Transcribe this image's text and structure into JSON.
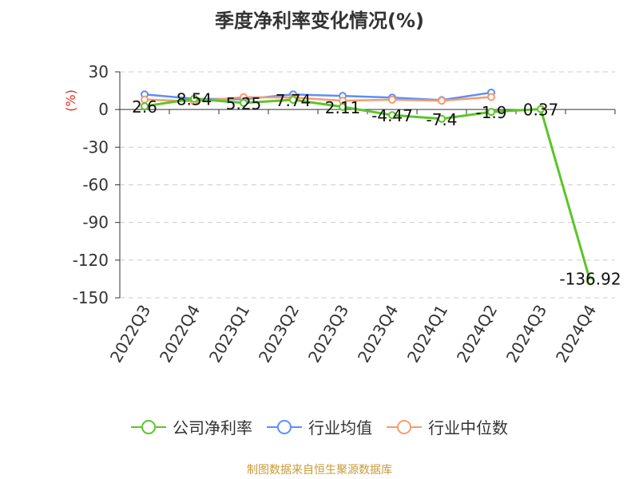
{
  "title": "季度净利率变化情况(%)",
  "y_unit": "(%)",
  "source": "制图数据来自恒生聚源数据库",
  "colors": {
    "company": "#5cc528",
    "industry_avg": "#5b8ff9",
    "industry_median": "#f89b6c",
    "unit": "#e0301e",
    "grid": "#cccccc",
    "axis": "#333333"
  },
  "chart_data": {
    "type": "line",
    "categories": [
      "2022Q3",
      "2022Q4",
      "2023Q1",
      "2023Q2",
      "2023Q3",
      "2023Q4",
      "2024Q1",
      "2024Q2",
      "2024Q3",
      "2024Q4"
    ],
    "ylim": [
      -150,
      30
    ],
    "yticks": [
      30,
      0,
      -30,
      -60,
      -90,
      -120,
      -150
    ],
    "ylabel": "(%)",
    "grid": true,
    "legend_position": "bottom",
    "series": [
      {
        "key": "company",
        "name": "公司净利率",
        "values": [
          2.6,
          8.54,
          5.25,
          7.74,
          2.11,
          -4.47,
          -7.4,
          -1.9,
          0.37,
          -136.92
        ],
        "labels": [
          "2.6",
          "8.54",
          "5.25",
          "7.74",
          "2.11",
          "-4.47",
          "-7.4",
          "-1.9",
          "0.37",
          "-136.92"
        ]
      },
      {
        "key": "industry_avg",
        "name": "行业均值",
        "values": [
          12.0,
          8.5,
          8.2,
          12.0,
          10.8,
          9.5,
          7.5,
          13.5,
          null,
          null
        ]
      },
      {
        "key": "industry_median",
        "name": "行业中位数",
        "values": [
          8.0,
          6.5,
          9.8,
          9.5,
          7.0,
          7.8,
          7.0,
          10.0,
          null,
          null
        ]
      }
    ]
  }
}
